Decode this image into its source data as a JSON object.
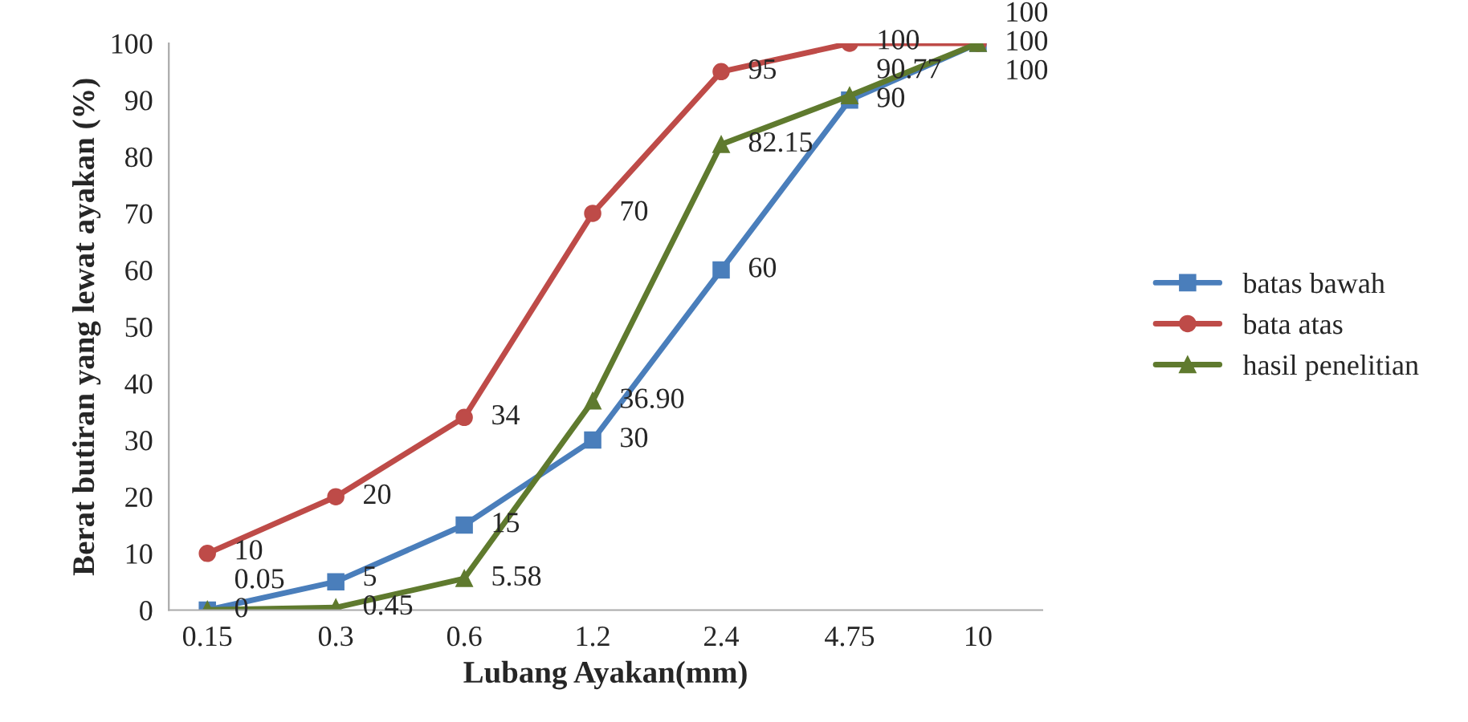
{
  "chart_data": {
    "type": "line",
    "xlabel": "Lubang Ayakan(mm)",
    "ylabel": "Berat butiran yang lewat ayakan (%)",
    "categories": [
      "0.15",
      "0.3",
      "0.6",
      "1.2",
      "2.4",
      "4.75",
      "10"
    ],
    "series": [
      {
        "name": "batas bawah",
        "color": "#4a7ebb",
        "marker": "square",
        "values": [
          0,
          5,
          15,
          30,
          60,
          90,
          100
        ],
        "value_labels": [
          "0",
          "5",
          "15",
          "30",
          "60",
          "90",
          "100"
        ]
      },
      {
        "name": "bata atas",
        "color": "#be4b48",
        "marker": "circle",
        "values": [
          10,
          20,
          34,
          70,
          95,
          100,
          100
        ],
        "value_labels": [
          "10",
          "20",
          "34",
          "70",
          "95",
          "100",
          "100"
        ]
      },
      {
        "name": "hasil penelitian",
        "color": "#5f7a2e",
        "marker": "triangle",
        "values": [
          0.05,
          0.45,
          5.58,
          36.9,
          82.15,
          90.77,
          100
        ],
        "value_labels": [
          "0.05",
          "0.45",
          "5.58",
          "36.90",
          "82.15",
          "90.77",
          "100"
        ]
      }
    ],
    "ylim": [
      0,
      100
    ],
    "yticks": [
      0,
      10,
      20,
      30,
      40,
      50,
      60,
      70,
      80,
      90,
      100
    ],
    "grid": false,
    "legend": "right",
    "line_style": "solid"
  }
}
